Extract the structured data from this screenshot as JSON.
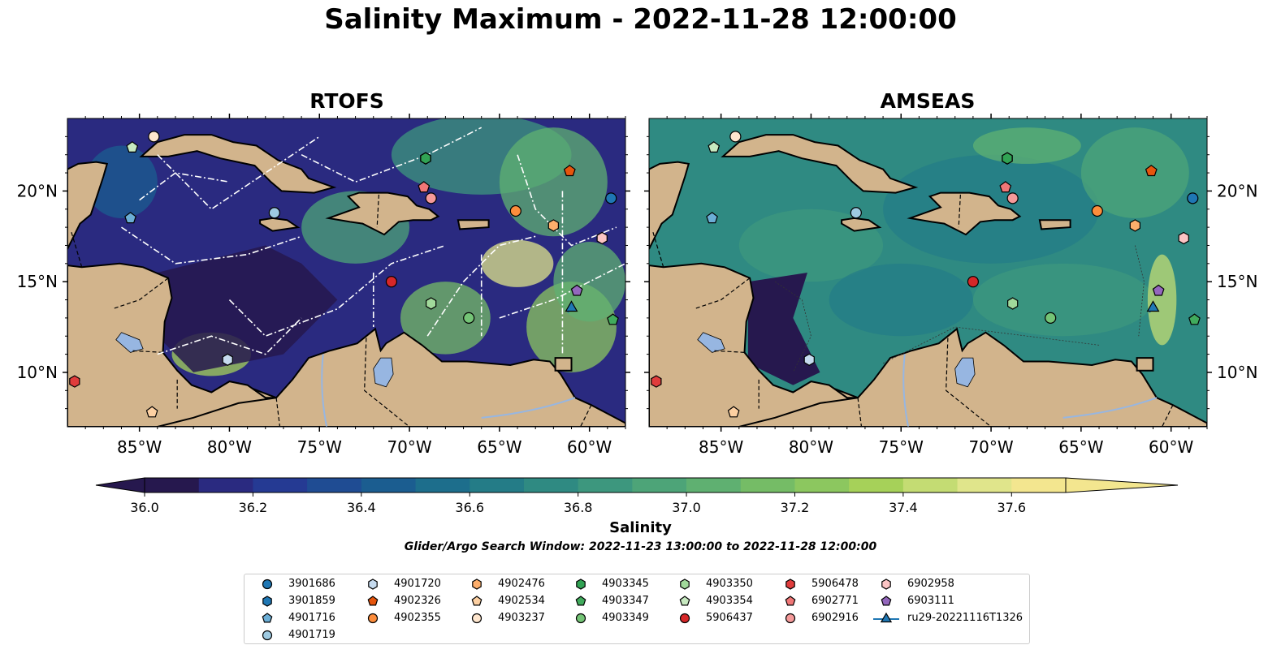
{
  "title": "Salinity Maximum - 2022-11-28 12:00:00",
  "panels": [
    {
      "title": "RTOFS"
    },
    {
      "title": "AMSEAS"
    }
  ],
  "colorbar": {
    "label": "Salinity",
    "ticks": [
      "36.0",
      "36.2",
      "36.4",
      "36.6",
      "36.8",
      "37.0",
      "37.2",
      "37.4",
      "37.6"
    ],
    "colors": [
      "#26184e",
      "#2a2a80",
      "#253a93",
      "#1f4c93",
      "#1b5d90",
      "#1d6e8c",
      "#247c87",
      "#2f8a82",
      "#3d977e",
      "#4da478",
      "#5fb071",
      "#75bc66",
      "#8cc75f",
      "#a6d159",
      "#c4dc73",
      "#e0e58b",
      "#f3e68f"
    ],
    "range": [
      36.0,
      37.7
    ],
    "extend": "both"
  },
  "search_window": "Glider/Argo Search Window: 2022-11-23 13:00:00 to 2022-11-28 12:00:00",
  "map": {
    "lon_range": [
      -89,
      -58
    ],
    "lat_range": [
      7,
      24
    ],
    "lon_ticks": [
      "85°W",
      "80°W",
      "75°W",
      "70°W",
      "65°W",
      "60°W"
    ],
    "lat_ticks": [
      "20°N",
      "15°N",
      "10°N"
    ],
    "land_color": "#d2b48c",
    "water_color": "#97b6e1"
  },
  "legend": [
    {
      "label": "3901686",
      "marker": "circle",
      "color": "#1f77b4"
    },
    {
      "label": "3901859",
      "marker": "hexagon",
      "color": "#1f77b4"
    },
    {
      "label": "4901716",
      "marker": "pentagon",
      "color": "#6baed6"
    },
    {
      "label": "4901719",
      "marker": "circle",
      "color": "#9ecae1"
    },
    {
      "label": "4901720",
      "marker": "hexagon",
      "color": "#c6dbef"
    },
    {
      "label": "4902326",
      "marker": "pentagon",
      "color": "#e6550d"
    },
    {
      "label": "4902355",
      "marker": "circle",
      "color": "#fd8d3c"
    },
    {
      "label": "4902476",
      "marker": "hexagon",
      "color": "#fdae6b"
    },
    {
      "label": "4902534",
      "marker": "pentagon",
      "color": "#fdd0a2"
    },
    {
      "label": "4903237",
      "marker": "circle",
      "color": "#fee6ce"
    },
    {
      "label": "4903345",
      "marker": "hexagon",
      "color": "#31a354"
    },
    {
      "label": "4903347",
      "marker": "pentagon",
      "color": "#41ab5d"
    },
    {
      "label": "4903349",
      "marker": "circle",
      "color": "#74c476"
    },
    {
      "label": "4903350",
      "marker": "hexagon",
      "color": "#a1d99b"
    },
    {
      "label": "4903354",
      "marker": "pentagon",
      "color": "#c7e9c0"
    },
    {
      "label": "5906437",
      "marker": "circle",
      "color": "#d62728"
    },
    {
      "label": "5906478",
      "marker": "hexagon",
      "color": "#e03c3c"
    },
    {
      "label": "6902771",
      "marker": "pentagon",
      "color": "#f07777"
    },
    {
      "label": "6902916",
      "marker": "circle",
      "color": "#f59a9a"
    },
    {
      "label": "6902958",
      "marker": "hexagon",
      "color": "#fbc4c4"
    },
    {
      "label": "6903111",
      "marker": "pentagon",
      "color": "#9467bd"
    },
    {
      "label": "ru29-20221116T1326",
      "marker": "triangle-line",
      "color": "#1f77b4"
    }
  ],
  "chart_data": {
    "type": "scatter",
    "title": "Salinity Maximum - 2022-11-28 12:00:00",
    "xlabel": "",
    "ylabel": "",
    "xlim": [
      -89,
      -58
    ],
    "ylim": [
      7,
      24
    ],
    "series": [
      {
        "name": "3901686",
        "x": [
          -58.8
        ],
        "y": [
          19.6
        ]
      },
      {
        "name": "3901859",
        "x": [
          -69.1
        ],
        "y": [
          21.8
        ]
      },
      {
        "name": "4901716",
        "x": [
          -85.5
        ],
        "y": [
          18.5
        ]
      },
      {
        "name": "4901719",
        "x": [
          -77.5
        ],
        "y": [
          18.8
        ]
      },
      {
        "name": "4901720",
        "x": [
          -80.1
        ],
        "y": [
          10.7
        ]
      },
      {
        "name": "4902326",
        "x": [
          -61.1
        ],
        "y": [
          21.1
        ]
      },
      {
        "name": "4902355",
        "x": [
          -64.1
        ],
        "y": [
          18.9
        ]
      },
      {
        "name": "4902476",
        "x": [
          -62.0
        ],
        "y": [
          18.1
        ]
      },
      {
        "name": "4902534",
        "x": [
          -84.3
        ],
        "y": [
          7.8
        ]
      },
      {
        "name": "4903237",
        "x": [
          -84.2
        ],
        "y": [
          23.0
        ]
      },
      {
        "name": "4903345",
        "x": [
          -69.1
        ],
        "y": [
          21.8
        ]
      },
      {
        "name": "4903347",
        "x": [
          -58.7
        ],
        "y": [
          12.9
        ]
      },
      {
        "name": "4903349",
        "x": [
          -66.7
        ],
        "y": [
          13.0
        ]
      },
      {
        "name": "4903350",
        "x": [
          -68.8
        ],
        "y": [
          13.8
        ]
      },
      {
        "name": "4903354",
        "x": [
          -85.4
        ],
        "y": [
          22.4
        ]
      },
      {
        "name": "5906437",
        "x": [
          -71.0
        ],
        "y": [
          15.0
        ]
      },
      {
        "name": "5906478",
        "x": [
          -88.6
        ],
        "y": [
          9.5
        ]
      },
      {
        "name": "6902771",
        "x": [
          -69.2
        ],
        "y": [
          20.2
        ]
      },
      {
        "name": "6902916",
        "x": [
          -68.8
        ],
        "y": [
          19.6
        ]
      },
      {
        "name": "6902958",
        "x": [
          -59.3
        ],
        "y": [
          17.4
        ]
      },
      {
        "name": "6903111",
        "x": [
          -60.7
        ],
        "y": [
          14.5
        ]
      },
      {
        "name": "ru29-20221116T1326",
        "x": [
          -61.2,
          -61.1,
          -61.0
        ],
        "y": [
          13.3,
          13.5,
          13.6
        ]
      }
    ]
  }
}
